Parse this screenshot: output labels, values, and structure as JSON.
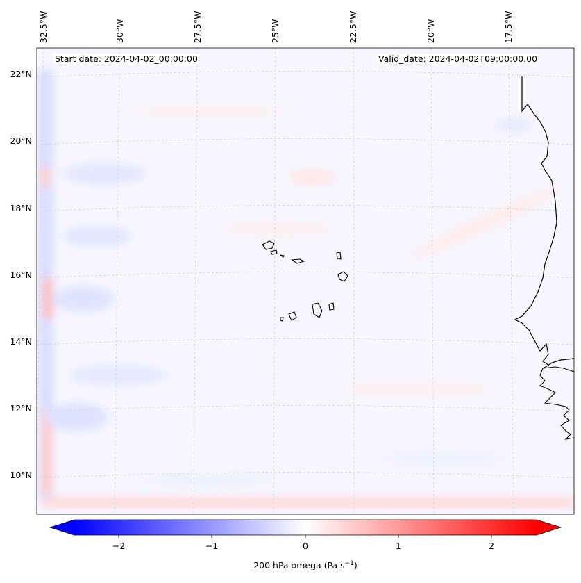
{
  "map": {
    "start_date_label": "Start date: 2024-04-02_00:00:00",
    "valid_date_label": "Valid_date: 2024-04-02T09:00:00.00",
    "lon_labels": [
      "32.5°W",
      "30°W",
      "27.5°W",
      "25°W",
      "22.5°W",
      "20°W",
      "17.5°W"
    ],
    "lat_labels": [
      "22°N",
      "20°N",
      "18°N",
      "16°N",
      "14°N",
      "12°N",
      "10°N"
    ],
    "extent": {
      "lon_min": -33.0,
      "lon_max": -15.5,
      "lat_min": 8.9,
      "lat_max": 22.8
    },
    "gridlines": true,
    "colors": {
      "negative": "#0000ff",
      "zero": "#ffffff",
      "positive": "#ff0000",
      "coastline": "#000000"
    }
  },
  "colorbar": {
    "title": "200 hPa omega (Pa s",
    "title_superscript": "−1",
    "title_close": ")",
    "ticks": [
      "−2",
      "−1",
      "0",
      "1",
      "2"
    ],
    "range": [
      -2.6,
      2.6
    ],
    "extend": "both"
  }
}
